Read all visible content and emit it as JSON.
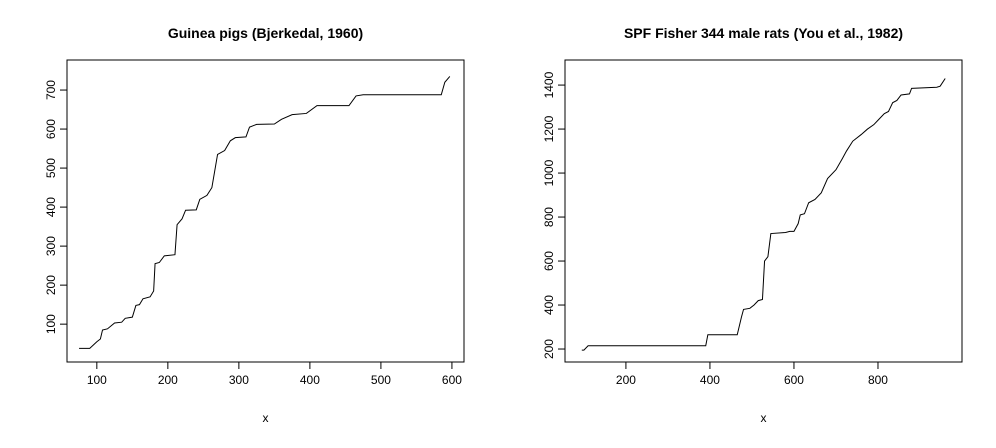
{
  "chart_data": [
    {
      "type": "line",
      "title": "Guinea pigs (Bjerkedal, 1960)",
      "xlabel": "x",
      "x": [
        75,
        90,
        100,
        105,
        108,
        115,
        125,
        135,
        140,
        150,
        155,
        160,
        165,
        175,
        180,
        182,
        188,
        195,
        210,
        213,
        220,
        225,
        240,
        245,
        255,
        262,
        270,
        280,
        288,
        295,
        310,
        315,
        325,
        350,
        360,
        375,
        395,
        410,
        455,
        465,
        475,
        585,
        590,
        597
      ],
      "values": [
        38,
        38,
        55,
        62,
        85,
        88,
        103,
        105,
        115,
        118,
        148,
        150,
        165,
        170,
        185,
        255,
        258,
        275,
        278,
        355,
        370,
        392,
        393,
        420,
        430,
        450,
        535,
        545,
        570,
        578,
        580,
        605,
        612,
        613,
        625,
        637,
        640,
        660,
        660,
        685,
        688,
        688,
        720,
        735
      ],
      "color": "#000000",
      "xlim": [
        58,
        617
      ],
      "xticks": [
        100,
        200,
        300,
        400,
        500,
        600
      ],
      "ylim": [
        3,
        777
      ],
      "yticks": [
        100,
        200,
        300,
        400,
        500,
        600,
        700
      ]
    },
    {
      "type": "line",
      "title": "SPF Fisher 344 male rats (You et al., 1982)",
      "xlabel": "x",
      "x": [
        95,
        100,
        110,
        390,
        395,
        465,
        475,
        480,
        495,
        505,
        515,
        525,
        530,
        538,
        545,
        580,
        590,
        600,
        610,
        615,
        625,
        635,
        650,
        665,
        680,
        700,
        715,
        725,
        740,
        760,
        775,
        790,
        800,
        815,
        825,
        835,
        845,
        855,
        875,
        880,
        940,
        948,
        960
      ],
      "values": [
        195,
        195,
        215,
        215,
        265,
        265,
        345,
        380,
        385,
        400,
        420,
        425,
        600,
        620,
        725,
        730,
        735,
        735,
        770,
        810,
        815,
        865,
        880,
        910,
        975,
        1015,
        1065,
        1100,
        1145,
        1175,
        1200,
        1220,
        1240,
        1270,
        1280,
        1320,
        1330,
        1355,
        1360,
        1385,
        1390,
        1395,
        1430
      ],
      "color": "#000000",
      "xlim": [
        55,
        1000
      ],
      "xticks": [
        200,
        400,
        600,
        800
      ],
      "ylim": [
        141,
        1514
      ],
      "yticks": [
        200,
        400,
        600,
        800,
        1000,
        1200,
        1400
      ]
    }
  ]
}
